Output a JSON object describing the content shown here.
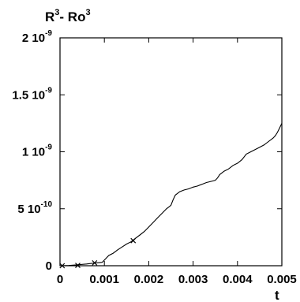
{
  "chart_data": {
    "type": "line",
    "ylabel": {
      "base1": "R",
      "exp1": "3",
      "sep": "- Ro",
      "exp2": "3"
    },
    "xlabel": "t",
    "xlim": [
      0,
      0.005
    ],
    "ylim": [
      0,
      2e-09
    ],
    "grid": false,
    "xticks": [
      {
        "value": 0,
        "label": "0"
      },
      {
        "value": 0.001,
        "label": "0.001"
      },
      {
        "value": 0.002,
        "label": "0.002"
      },
      {
        "value": 0.003,
        "label": "0.003"
      },
      {
        "value": 0.004,
        "label": "0.004"
      },
      {
        "value": 0.005,
        "label": "0.005"
      }
    ],
    "yticks": [
      {
        "value": 0,
        "mantissa": "0",
        "exp": ""
      },
      {
        "value": 5e-10,
        "mantissa": "5 10",
        "exp": "-10"
      },
      {
        "value": 1e-09,
        "mantissa": "1 10",
        "exp": "-9"
      },
      {
        "value": 1.5e-09,
        "mantissa": "1.5 10",
        "exp": "-9"
      },
      {
        "value": 2e-09,
        "mantissa": "2 10",
        "exp": "-9"
      }
    ],
    "series": [
      {
        "style": "line",
        "x": [
          0,
          0.0002,
          0.0004,
          0.0006,
          0.0008,
          0.00095,
          0.0011,
          0.0012,
          0.0013,
          0.0014,
          0.0015,
          0.0016,
          0.0017,
          0.0018,
          0.0019,
          0.002,
          0.0021,
          0.0022,
          0.0023,
          0.0024,
          0.0025,
          0.00255,
          0.0026,
          0.0027,
          0.0028,
          0.0029,
          0.003,
          0.0031,
          0.0032,
          0.0033,
          0.0034,
          0.0035,
          0.00355,
          0.0036,
          0.0037,
          0.0038,
          0.0039,
          0.004,
          0.0041,
          0.0042,
          0.0043,
          0.0044,
          0.0045,
          0.0046,
          0.0047,
          0.0048,
          0.00485,
          0.0049,
          0.00495,
          0.005
        ],
        "y": [
          0,
          2e-12,
          8e-12,
          1.5e-11,
          2.5e-11,
          3e-11,
          9e-11,
          1.1e-10,
          1.4e-10,
          1.65e-10,
          1.9e-10,
          2.1e-10,
          2.4e-10,
          2.7e-10,
          3e-10,
          3.4e-10,
          3.8e-10,
          4.2e-10,
          4.6e-10,
          5e-10,
          5.3e-10,
          5.8e-10,
          6.2e-10,
          6.5e-10,
          6.65e-10,
          6.75e-10,
          6.9e-10,
          7e-10,
          7.15e-10,
          7.3e-10,
          7.4e-10,
          7.5e-10,
          7.7e-10,
          8e-10,
          8.3e-10,
          8.5e-10,
          8.8e-10,
          9e-10,
          9.3e-10,
          9.8e-10,
          1e-09,
          1.02e-09,
          1.04e-09,
          1.06e-09,
          1.09e-09,
          1.12e-09,
          1.14e-09,
          1.17e-09,
          1.21e-09,
          1.25e-09
        ]
      },
      {
        "style": "markers",
        "marker": "x",
        "x": [
          5e-05,
          0.0004,
          0.00078,
          0.00165
        ],
        "y": [
          0,
          3e-12,
          2.5e-11,
          2.2e-10
        ]
      }
    ]
  }
}
